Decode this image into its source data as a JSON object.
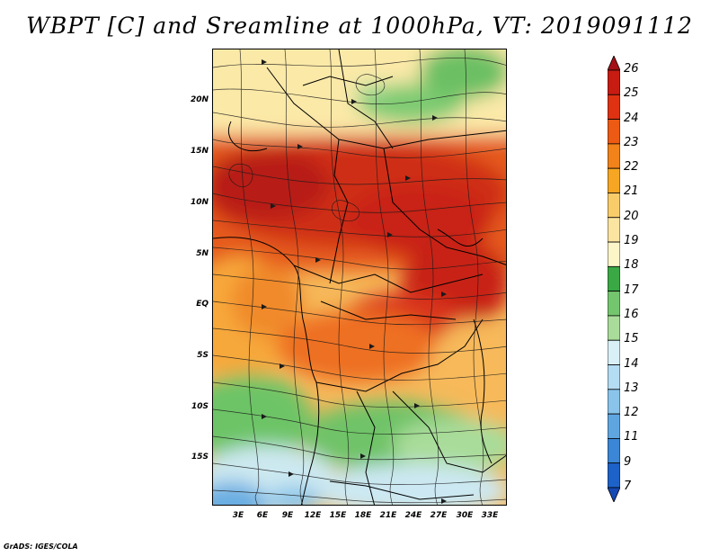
{
  "title": "WBPT [C] and Sreamline at 1000hPa, VT: 2019091112",
  "credit": "GrADS: IGES/COLA",
  "map": {
    "y_axis_labels": [
      "20N",
      "15N",
      "10N",
      "5N",
      "EQ",
      "5S",
      "10S",
      "15S"
    ],
    "x_axis_labels": [
      "3E",
      "6E",
      "9E",
      "12E",
      "15E",
      "18E",
      "21E",
      "24E",
      "27E",
      "30E",
      "33E"
    ]
  },
  "colorbar": {
    "labels": [
      "26",
      "25",
      "24",
      "23",
      "22",
      "21",
      "20",
      "19",
      "18",
      "17",
      "16",
      "15",
      "14",
      "13",
      "12",
      "11",
      "9",
      "7"
    ],
    "colors": [
      "#a50f15",
      "#c81c12",
      "#df3212",
      "#ec5a14",
      "#f2821a",
      "#f6a623",
      "#f9cc6a",
      "#fbe4a0",
      "#fbf5c8",
      "#3aa844",
      "#74c66e",
      "#a9dc9a",
      "#d8f0f6",
      "#b4dcf2",
      "#8ac4ea",
      "#5fa6e0",
      "#3b86d6",
      "#1d62c8",
      "#1448b4"
    ]
  }
}
